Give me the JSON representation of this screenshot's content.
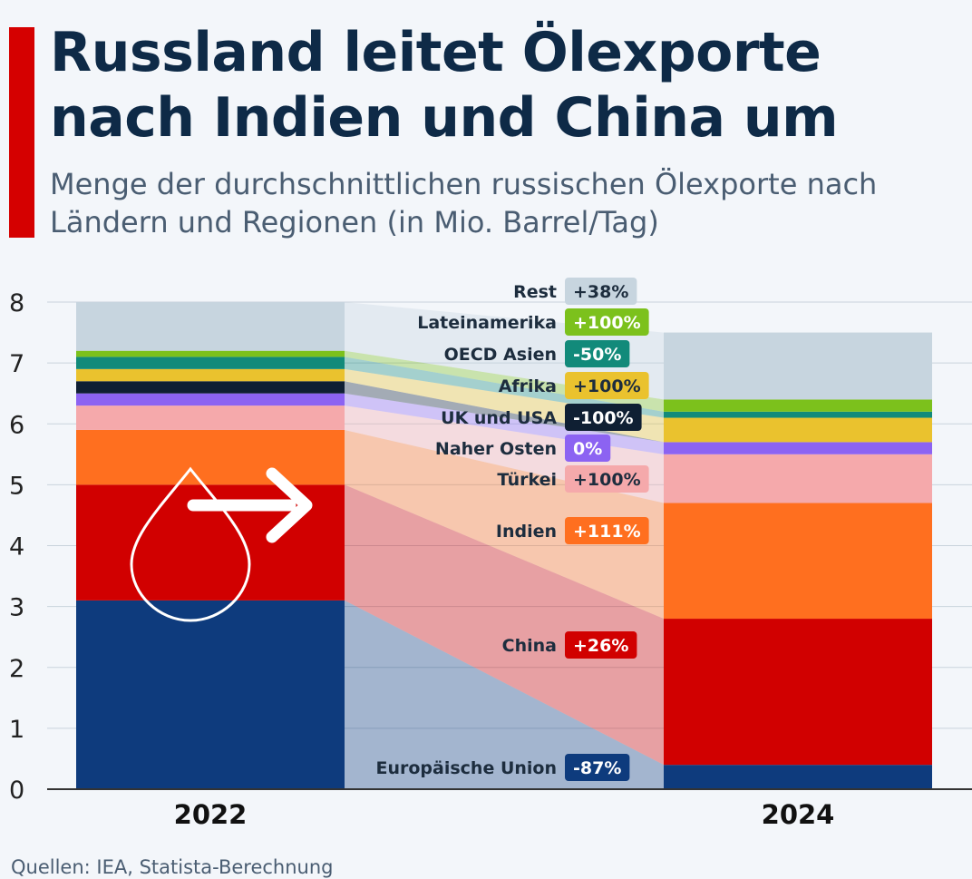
{
  "header": {
    "title": "Russland leitet Ölexporte nach Indien und China um",
    "subtitle": "Menge der durchschnittlichen russischen Ölexporte nach Ländern und Regionen (in Mio. Barrel/Tag)"
  },
  "footer": {
    "source": "Quellen: IEA, Statista-Berechnung"
  },
  "chart_data": {
    "type": "bar",
    "stacked": true,
    "title": "Russland leitet Ölexporte nach Indien und China um",
    "subtitle": "Menge der durchschnittlichen russischen Ölexporte nach Ländern und Regionen (in Mio. Barrel/Tag)",
    "categories": [
      "2022",
      "2024"
    ],
    "ylim": [
      0,
      8
    ],
    "yticks": [
      0,
      1,
      2,
      3,
      4,
      5,
      6,
      7,
      8
    ],
    "ylabel": "",
    "xlabel": "",
    "grid": true,
    "series": [
      {
        "name": "Europäische Union",
        "change": "-87%",
        "color": "#0e3b7d",
        "badge_text_color": "#ffffff",
        "values": [
          3.1,
          0.4
        ]
      },
      {
        "name": "China",
        "change": "+26%",
        "color": "#d10000",
        "badge_text_color": "#ffffff",
        "values": [
          1.9,
          2.4
        ]
      },
      {
        "name": "Indien",
        "change": "+111%",
        "color": "#ff6f1f",
        "badge_text_color": "#ffffff",
        "values": [
          0.9,
          1.9
        ]
      },
      {
        "name": "Türkei",
        "change": "+100%",
        "color": "#f5a9ab",
        "badge_text_color": "#1d2d3e",
        "values": [
          0.4,
          0.8
        ]
      },
      {
        "name": "Naher Osten",
        "change": "0%",
        "color": "#8c63f2",
        "badge_text_color": "#ffffff",
        "values": [
          0.2,
          0.2
        ]
      },
      {
        "name": "UK und USA",
        "change": "-100%",
        "color": "#0f1f33",
        "badge_text_color": "#ffffff",
        "values": [
          0.2,
          0.0
        ]
      },
      {
        "name": "Afrika",
        "change": "+100%",
        "color": "#eac22e",
        "badge_text_color": "#1d2d3e",
        "values": [
          0.2,
          0.4
        ]
      },
      {
        "name": "OECD Asien",
        "change": "-50%",
        "color": "#128a7a",
        "badge_text_color": "#ffffff",
        "values": [
          0.2,
          0.1
        ]
      },
      {
        "name": "Lateinamerika",
        "change": "+100%",
        "color": "#7cc11c",
        "badge_text_color": "#ffffff",
        "values": [
          0.1,
          0.2
        ]
      },
      {
        "name": "Rest",
        "change": "+38%",
        "color": "#c7d5df",
        "badge_text_color": "#1d2d3e",
        "values": [
          0.8,
          1.1
        ]
      }
    ]
  }
}
